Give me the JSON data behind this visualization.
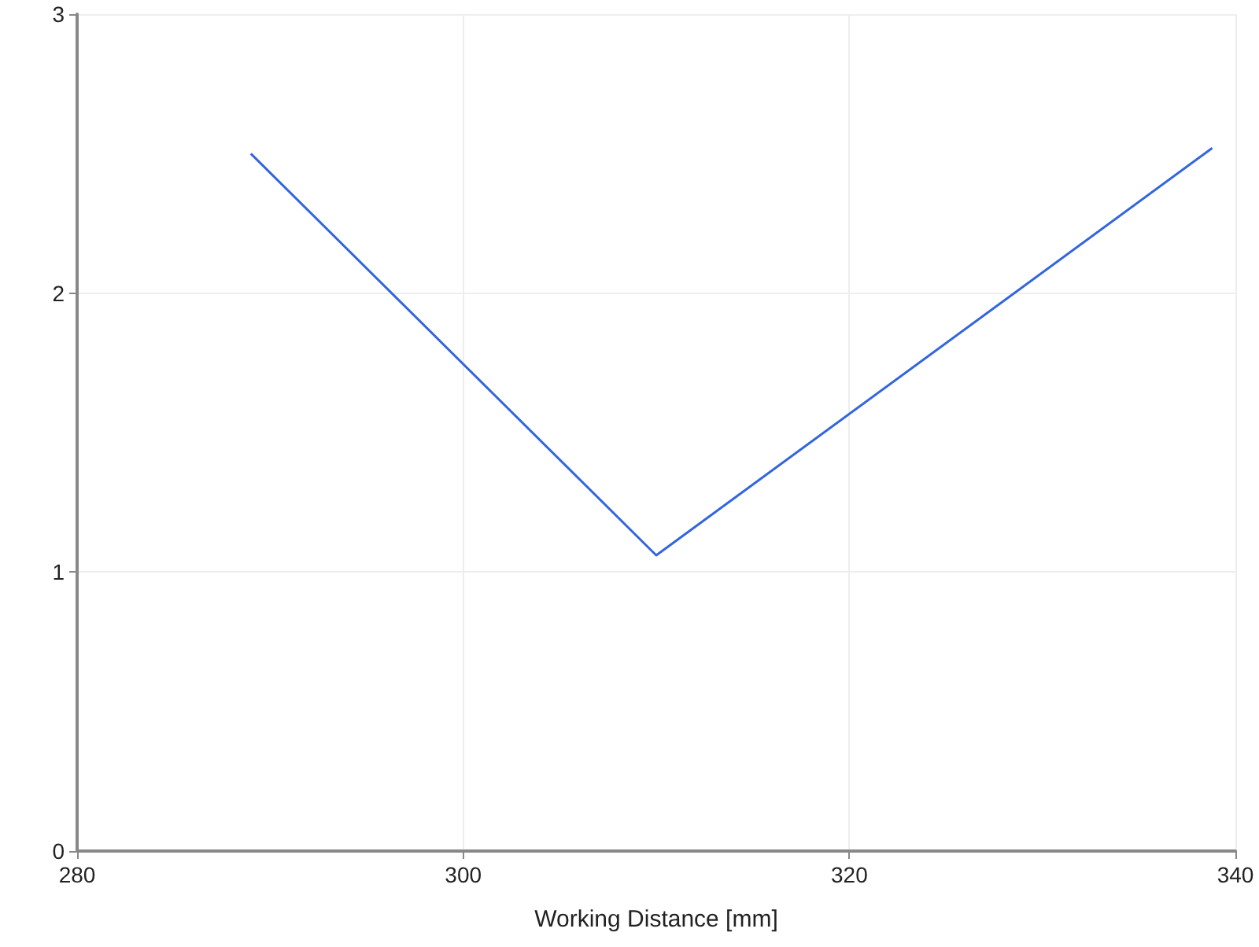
{
  "chart_data": {
    "type": "line",
    "xlabel": "Working Distance [mm]",
    "x": [
      289,
      310,
      338.8
    ],
    "series": [
      {
        "color": "#3366dd",
        "values": [
          2.5,
          1.06,
          2.52
        ]
      }
    ],
    "xlim": [
      280,
      340
    ],
    "xticks": [
      280,
      300,
      320,
      340
    ],
    "ylim": [
      0,
      3
    ],
    "yticks": [
      0,
      1,
      2,
      3
    ],
    "grid": true,
    "marker": "none",
    "line_style": "solid"
  }
}
